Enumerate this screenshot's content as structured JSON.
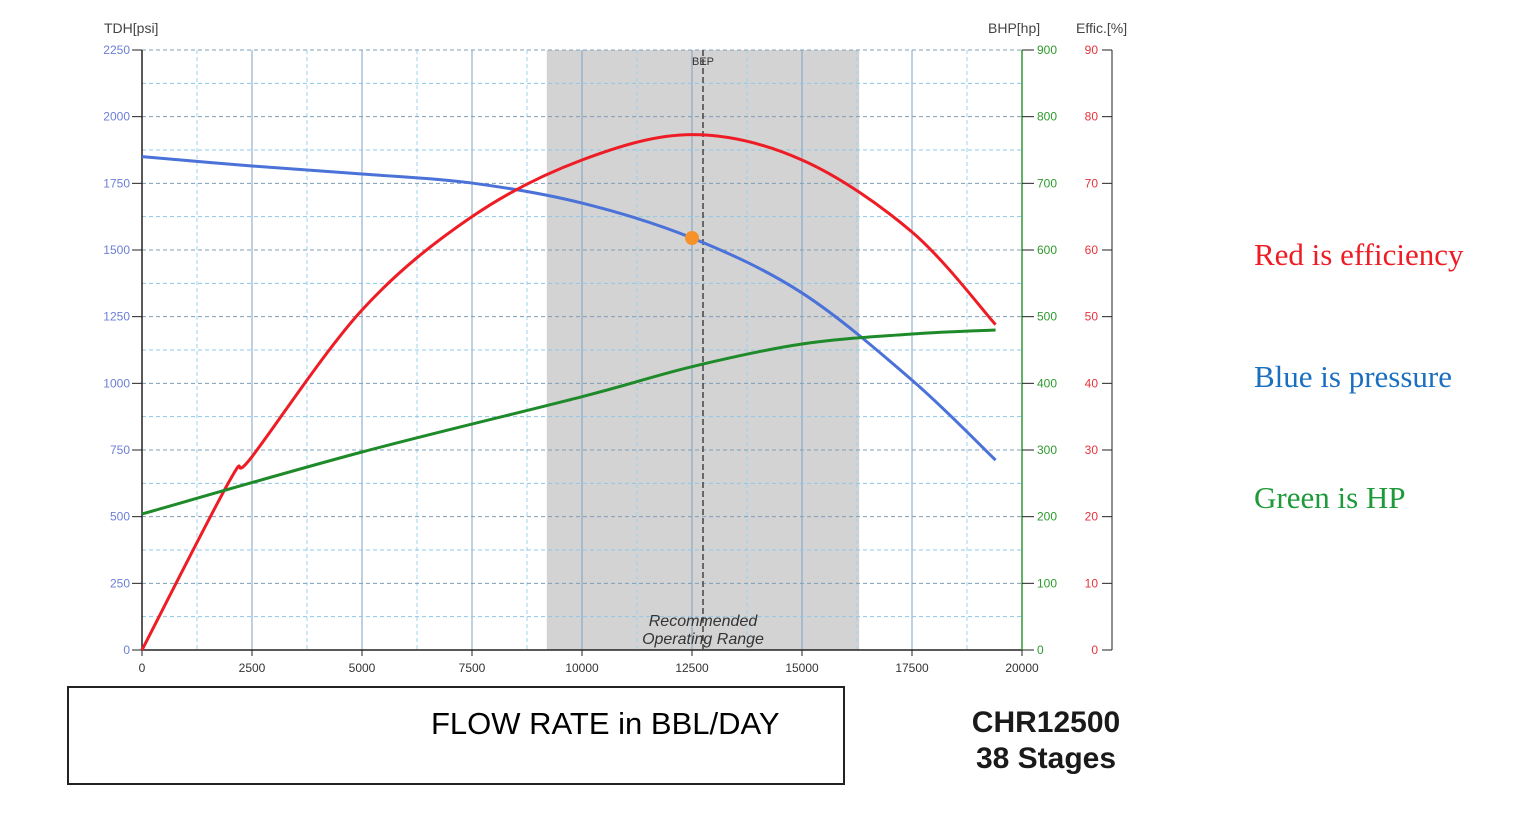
{
  "chart_data": {
    "type": "line",
    "xlabel": "FLOW RATE in BBL/DAY",
    "xlim": [
      0,
      20000
    ],
    "xticks": [
      "0",
      "2500",
      "5000",
      "7500",
      "10000",
      "12500",
      "15000",
      "17500",
      "20000"
    ],
    "axes": {
      "left": {
        "label": "TDH[psi]",
        "range": [
          0,
          2250
        ],
        "ticks": [
          "0",
          "250",
          "500",
          "750",
          "1000",
          "1250",
          "1500",
          "1750",
          "2000",
          "2250"
        ],
        "color": "#6b7fd6"
      },
      "right1": {
        "label": "BHP[hp]",
        "range": [
          0,
          900
        ],
        "ticks": [
          "0",
          "100",
          "200",
          "300",
          "400",
          "500",
          "600",
          "700",
          "800",
          "900"
        ],
        "color": "#2e9a2e"
      },
      "right2": {
        "label": "Effic.[%]",
        "range": [
          0,
          90
        ],
        "ticks": [
          "0",
          "10",
          "20",
          "30",
          "40",
          "50",
          "60",
          "70",
          "80",
          "90"
        ],
        "color": "#e8323c"
      }
    },
    "grid": true,
    "series": [
      {
        "axis": "left",
        "color": "#4a72d8",
        "x": [
          0,
          2500,
          5000,
          7500,
          10000,
          12500,
          15000,
          17500,
          19400
        ],
        "y": [
          1850,
          1815,
          1785,
          1751,
          1676,
          1545,
          1339,
          1012,
          712
        ]
      },
      {
        "axis": "right2",
        "color": "#ee1c25",
        "x": [
          0,
          2000,
          2500,
          5000,
          7500,
          10000,
          12500,
          15000,
          17500,
          19400
        ],
        "y": [
          0,
          25.5,
          29,
          51,
          65,
          73.5,
          77.3,
          73.5,
          62.7,
          48.8
        ]
      },
      {
        "axis": "right1",
        "color": "#1e8a2a",
        "x": [
          0,
          5000,
          10000,
          12500,
          15000,
          17500,
          19400
        ],
        "y": [
          204,
          297,
          380,
          425,
          459,
          474,
          480
        ]
      }
    ],
    "recommended_range": {
      "x": [
        9200,
        16300
      ],
      "label_line1": "Recommended",
      "label_line2": "Operating Range",
      "color": "#d3d3d3"
    },
    "bep": {
      "label": "BEP",
      "x": 12750
    },
    "operating_point": {
      "x": 12500,
      "tdh": 1545,
      "color": "#f7922a"
    }
  },
  "notes": [
    {
      "text": "Red is efficiency",
      "color": "#ee1c25"
    },
    {
      "text": "Blue is pressure",
      "color": "#1a6fc0"
    },
    {
      "text": "Green is HP",
      "color": "#1e9a3a"
    }
  ],
  "model": {
    "name": "CHR12500",
    "stages": "38 Stages"
  }
}
